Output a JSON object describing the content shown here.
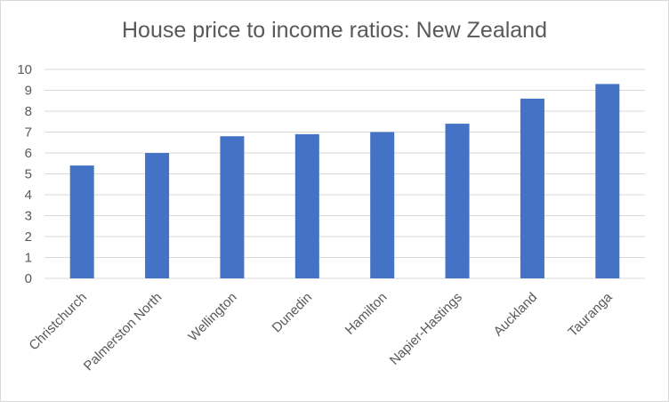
{
  "chart_data": {
    "type": "bar",
    "title": "House price to income ratios: New Zealand",
    "categories": [
      "Christchurch",
      "Palmerston North",
      "Wellington",
      "Dunedin",
      "Hamilton",
      "Napier-Hastings",
      "Auckland",
      "Tauranga"
    ],
    "values": [
      5.4,
      6.0,
      6.8,
      6.9,
      7.0,
      7.4,
      8.6,
      9.3
    ],
    "ylim": [
      0,
      10
    ],
    "yticks": [
      "0",
      "1",
      "2",
      "3",
      "4",
      "5",
      "6",
      "7",
      "8",
      "9",
      "10"
    ],
    "xlabel": "",
    "ylabel": "",
    "grid": true,
    "colors": {
      "bar": "#4472c4",
      "grid": "#d9d9d9",
      "text": "#595959"
    }
  }
}
